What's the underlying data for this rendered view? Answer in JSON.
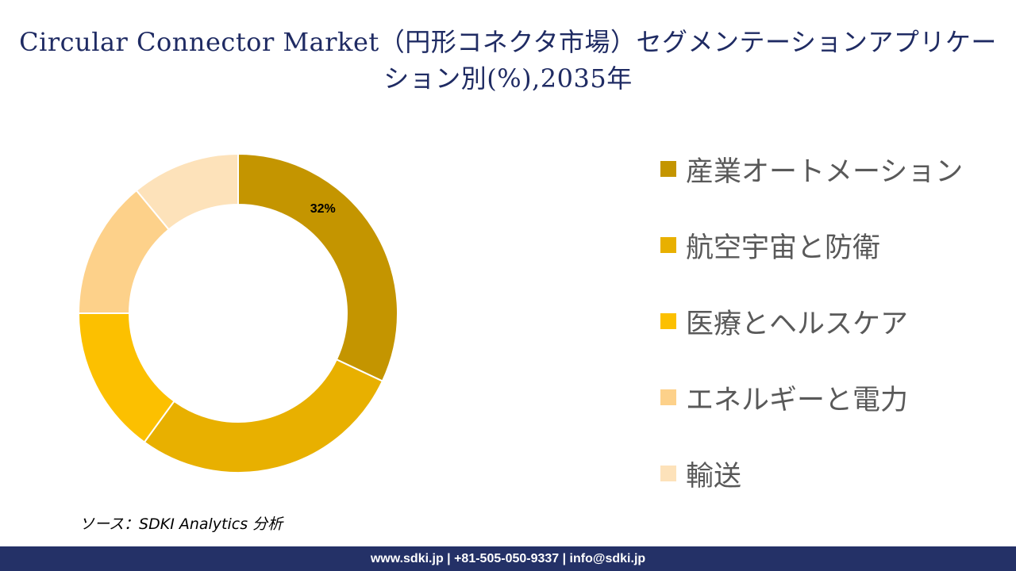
{
  "title": "Circular Connector Market（円形コネクタ市場）セグメンテーションアプリケーション別(%),2035年",
  "chart_data": {
    "type": "pie",
    "subtype": "donut",
    "categories": [
      "産業オートメーション",
      "航空宇宙と防衛",
      "医療とヘルスケア",
      "エネルギーと電力",
      "輸送"
    ],
    "values": [
      32,
      28,
      15,
      14,
      11
    ],
    "colors": [
      "#c49500",
      "#e8b000",
      "#fcc000",
      "#fdd18a",
      "#fde2ba"
    ],
    "data_labels": [
      "32%",
      "",
      "",
      "",
      ""
    ],
    "legend_position": "right",
    "title": "Circular Connector Market（円形コネクタ市場）セグメンテーションアプリケーション別(%),2035年"
  },
  "source": "ソース：SDKI Analytics 分析",
  "footer": "www.sdki.jp | +81-505-050-9337 | info@sdki.jp"
}
